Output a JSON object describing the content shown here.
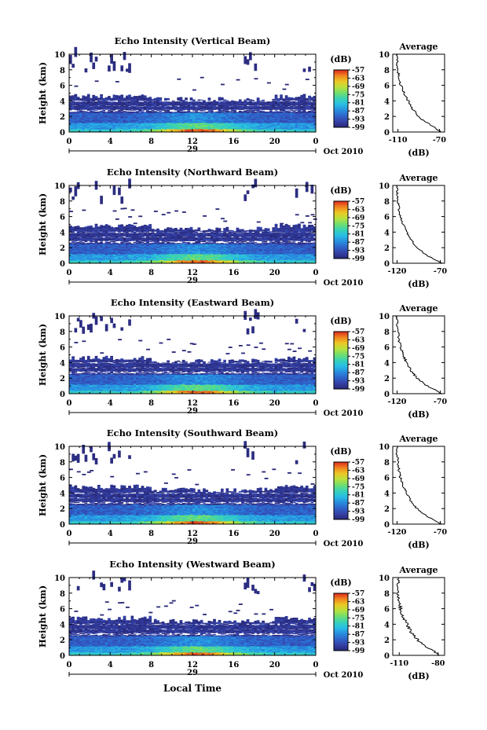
{
  "figure": {
    "bottom_label": "Local Time",
    "colorbar_unit": "(dB)",
    "colorbar_ticks": [
      "-57",
      "-63",
      "-69",
      "-75",
      "-81",
      "-87",
      "-93",
      "-99"
    ],
    "avg_title": "Average",
    "avg_xlabel": "(dB)",
    "ylabel": "Height (km)",
    "month_label": "Oct 2010",
    "day_label": "29",
    "time_ticks": [
      "0",
      "4",
      "8",
      "12",
      "16",
      "20",
      "0"
    ],
    "height_ticks": [
      "0",
      "2",
      "4",
      "6",
      "8",
      "10"
    ]
  },
  "chart_data": [
    {
      "type": "heatmap",
      "title": "Echo Intensity (Vertical Beam)",
      "xlabel": "",
      "ylabel": "Height (km)",
      "xlim": [
        0,
        24
      ],
      "ylim": [
        0,
        10
      ],
      "color_range_db": [
        -99,
        -57
      ],
      "cloud_top_km": 4.6,
      "average_profile": {
        "title": "Average",
        "xlabel": "(dB)",
        "x_ticks": [
          "-110",
          "-70"
        ],
        "xlim": [
          -115,
          -65
        ],
        "height_km": [
          0,
          1,
          2,
          3,
          4,
          5,
          6,
          7,
          8,
          9,
          10
        ],
        "db": [
          -68,
          -80,
          -90,
          -96,
          -100,
          -104,
          -107,
          -109,
          -110,
          -111,
          -111
        ]
      }
    },
    {
      "type": "heatmap",
      "title": "Echo Intensity (Northward Beam)",
      "xlabel": "",
      "ylabel": "Height (km)",
      "xlim": [
        0,
        24
      ],
      "ylim": [
        0,
        10
      ],
      "color_range_db": [
        -99,
        -57
      ],
      "cloud_top_km": 4.8,
      "average_profile": {
        "title": "Average",
        "xlabel": "(dB)",
        "x_ticks": [
          "-120",
          "-70"
        ],
        "xlim": [
          -125,
          -65
        ],
        "height_km": [
          0,
          1,
          2,
          3,
          4,
          5,
          6,
          7,
          8,
          9,
          10
        ],
        "db": [
          -68,
          -85,
          -97,
          -104,
          -109,
          -113,
          -116,
          -118,
          -119,
          -120,
          -120
        ]
      }
    },
    {
      "type": "heatmap",
      "title": "Echo Intensity (Eastward Beam)",
      "xlabel": "",
      "ylabel": "Height (km)",
      "xlim": [
        0,
        24
      ],
      "ylim": [
        0,
        10
      ],
      "color_range_db": [
        -99,
        -57
      ],
      "cloud_top_km": 4.6,
      "average_profile": {
        "title": "Average",
        "xlabel": "(dB)",
        "x_ticks": [
          "-120",
          "-70"
        ],
        "xlim": [
          -125,
          -65
        ],
        "height_km": [
          0,
          1,
          2,
          3,
          4,
          5,
          6,
          7,
          8,
          9,
          10
        ],
        "db": [
          -68,
          -85,
          -97,
          -104,
          -109,
          -113,
          -116,
          -118,
          -119,
          -120,
          -120
        ]
      }
    },
    {
      "type": "heatmap",
      "title": "Echo Intensity (Southward Beam)",
      "xlabel": "",
      "ylabel": "Height (km)",
      "xlim": [
        0,
        24
      ],
      "ylim": [
        0,
        10
      ],
      "color_range_db": [
        -99,
        -57
      ],
      "cloud_top_km": 4.8,
      "average_profile": {
        "title": "Average",
        "xlabel": "(dB)",
        "x_ticks": [
          "-120",
          "-70"
        ],
        "xlim": [
          -125,
          -65
        ],
        "height_km": [
          0,
          1,
          2,
          3,
          4,
          5,
          6,
          7,
          8,
          9,
          10
        ],
        "db": [
          -68,
          -85,
          -97,
          -104,
          -109,
          -113,
          -116,
          -118,
          -119,
          -120,
          -120
        ]
      }
    },
    {
      "type": "heatmap",
      "title": "Echo Intensity (Westward Beam)",
      "xlabel": "Local Time",
      "ylabel": "Height (km)",
      "xlim": [
        0,
        24
      ],
      "ylim": [
        0,
        10
      ],
      "color_range_db": [
        -99,
        -57
      ],
      "cloud_top_km": 4.8,
      "average_profile": {
        "title": "Average",
        "xlabel": "(dB)",
        "x_ticks": [
          "-110",
          "-80"
        ],
        "xlim": [
          -115,
          -75
        ],
        "height_km": [
          0,
          1,
          2,
          3,
          4,
          5,
          6,
          7,
          8,
          9,
          10
        ],
        "db": [
          -78,
          -88,
          -96,
          -101,
          -104,
          -107,
          -109,
          -110,
          -111,
          -111,
          -111
        ]
      }
    }
  ]
}
